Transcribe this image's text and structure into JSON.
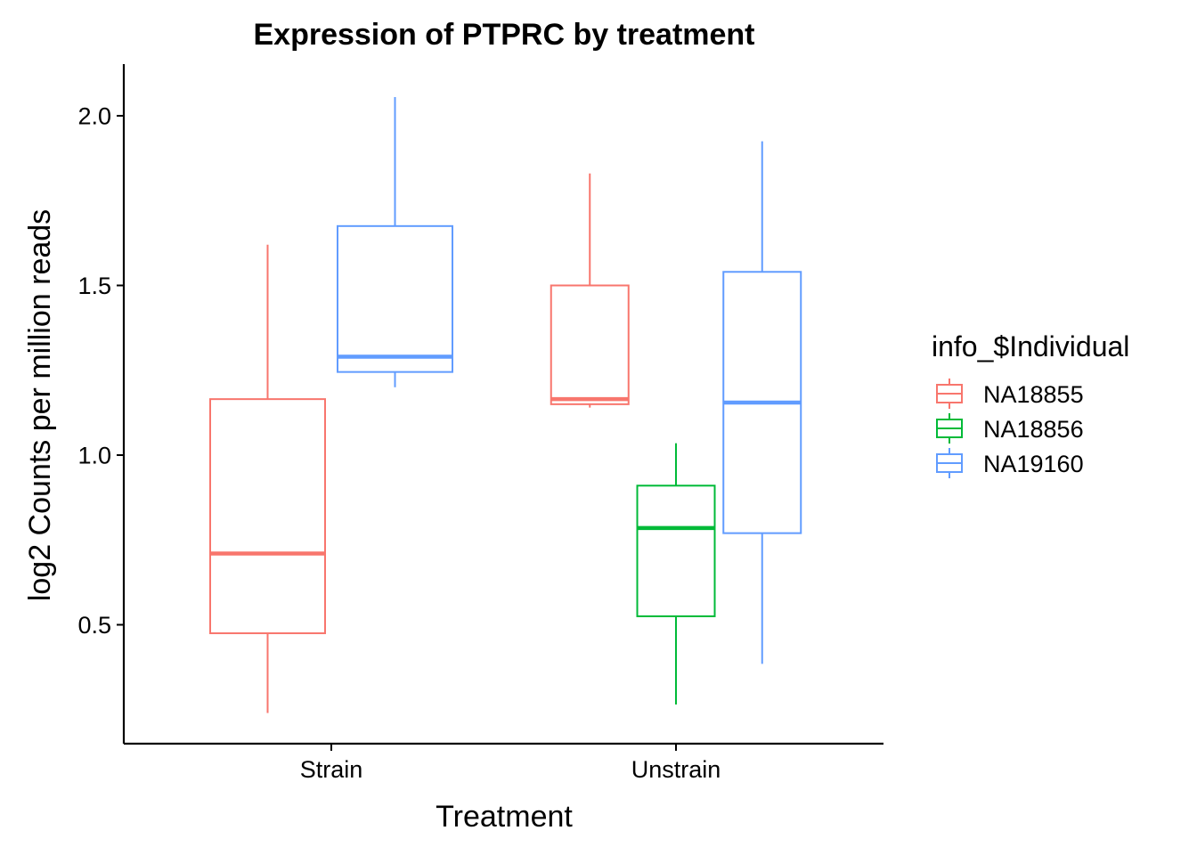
{
  "chart_data": {
    "type": "boxplot",
    "title": "Expression of PTPRC by treatment",
    "xlabel": "Treatment",
    "ylabel": "log2 Counts per million reads",
    "categories": [
      "Strain",
      "Unstrain"
    ],
    "ylim": [
      0.15,
      2.15
    ],
    "yticks": [
      "0.5",
      "1.0",
      "1.5",
      "2.0"
    ],
    "grid": false,
    "legend": {
      "title": "info_$Individual",
      "position": "right",
      "entries": [
        {
          "label": "NA18855",
          "color": "#F8766D"
        },
        {
          "label": "NA18856",
          "color": "#00BA38"
        },
        {
          "label": "NA19160",
          "color": "#619CFF"
        }
      ]
    },
    "boxes": [
      {
        "category": "Strain",
        "series": "NA18855",
        "color": "#F8766D",
        "min": 0.24,
        "q1": 0.475,
        "median": 0.71,
        "q3": 1.165,
        "max": 1.62
      },
      {
        "category": "Strain",
        "series": "NA19160",
        "color": "#619CFF",
        "min": 1.2,
        "q1": 1.245,
        "median": 1.29,
        "q3": 1.675,
        "max": 2.055
      },
      {
        "category": "Unstrain",
        "series": "NA18855",
        "color": "#F8766D",
        "min": 1.14,
        "q1": 1.15,
        "median": 1.165,
        "q3": 1.5,
        "max": 1.83
      },
      {
        "category": "Unstrain",
        "series": "NA18856",
        "color": "#00BA38",
        "min": 0.265,
        "q1": 0.525,
        "median": 0.785,
        "q3": 0.91,
        "max": 1.035
      },
      {
        "category": "Unstrain",
        "series": "NA19160",
        "color": "#619CFF",
        "min": 0.385,
        "q1": 0.77,
        "median": 1.155,
        "q3": 1.54,
        "max": 1.925
      }
    ]
  }
}
